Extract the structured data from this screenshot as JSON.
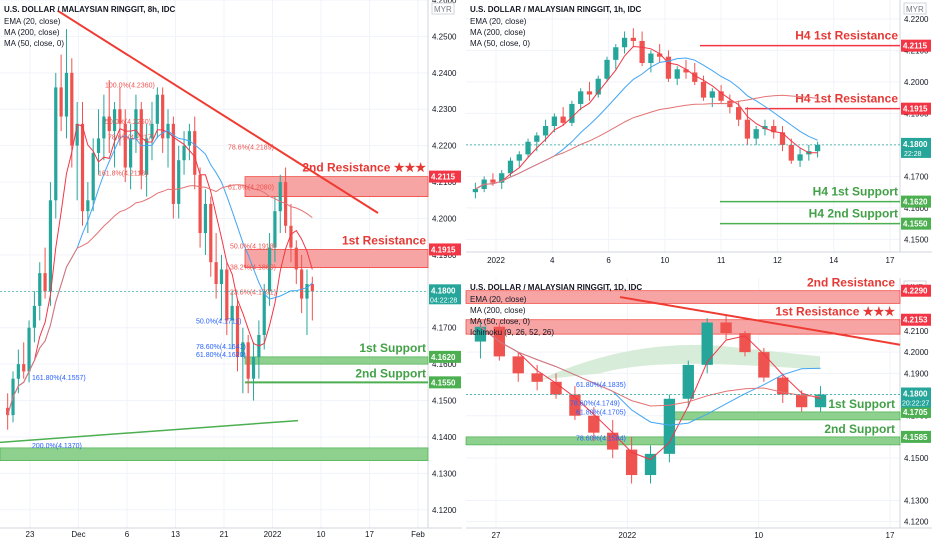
{
  "colors": {
    "bull": "#26a69a",
    "bear": "#ef5350",
    "ema20": "#f23645",
    "ma200": "#e57373",
    "ma50": "#42a5f5",
    "resistance_zone": "#f7a4a4",
    "support_zone": "#8ed08e",
    "resistance_text": "#e53935",
    "support_text": "#43a047",
    "res_label_bg": "#f23645",
    "sup_label_bg": "#4caf50",
    "price_label_bg": "#26a69a",
    "fib_text": "#ef5350",
    "fib_blue": "#2962ff",
    "grid": "#f0f3fa",
    "axis_text": "#131722",
    "trendline": "#ef3b32",
    "support_trend": "#4caf50",
    "ichimoku_cloud": "#c8e6c9"
  },
  "chart_data": [
    {
      "id": "main8h",
      "type": "candlestick",
      "title": "U.S. DOLLAR / MALAYSIAN RINGGIT, 8h, IDC",
      "indicators": [
        "EMA (20, close)",
        "MA (200, close)",
        "MA (50, close, 0)"
      ],
      "currency": "MYR",
      "ylim": [
        4.115,
        4.26
      ],
      "y_ticks": [
        "4.2600",
        "4.2500",
        "4.2400",
        "4.2300",
        "4.2200",
        "4.2100",
        "4.2000",
        "4.1900",
        "4.1800",
        "4.1700",
        "4.1600",
        "4.1500",
        "4.1400",
        "4.1300",
        "4.1200"
      ],
      "x_ticks": [
        "23",
        "Dec",
        "6",
        "13",
        "21",
        "2022",
        "10",
        "17",
        "Feb"
      ],
      "candles": [
        [
          4.148,
          4.152,
          4.142,
          4.146
        ],
        [
          4.146,
          4.158,
          4.144,
          4.156
        ],
        [
          4.156,
          4.164,
          4.152,
          4.16
        ],
        [
          4.16,
          4.166,
          4.156,
          4.158
        ],
        [
          4.158,
          4.172,
          4.155,
          4.17
        ],
        [
          4.17,
          4.18,
          4.166,
          4.176
        ],
        [
          4.176,
          4.188,
          4.172,
          4.185
        ],
        [
          4.185,
          4.192,
          4.178,
          4.18
        ],
        [
          4.18,
          4.21,
          4.176,
          4.205
        ],
        [
          4.205,
          4.24,
          4.2,
          4.236
        ],
        [
          4.236,
          4.245,
          4.224,
          4.228
        ],
        [
          4.228,
          4.252,
          4.222,
          4.24
        ],
        [
          4.24,
          4.244,
          4.214,
          4.22
        ],
        [
          4.22,
          4.232,
          4.205,
          4.226
        ],
        [
          4.226,
          4.232,
          4.198,
          4.202
        ],
        [
          4.202,
          4.21,
          4.196,
          4.205
        ],
        [
          4.205,
          4.222,
          4.202,
          4.218
        ],
        [
          4.218,
          4.23,
          4.212,
          4.222
        ],
        [
          4.222,
          4.234,
          4.216,
          4.228
        ],
        [
          4.228,
          4.238,
          4.218,
          4.224
        ],
        [
          4.224,
          4.232,
          4.214,
          4.23
        ],
        [
          4.23,
          4.236,
          4.22,
          4.226
        ],
        [
          4.226,
          4.23,
          4.21,
          4.214
        ],
        [
          4.214,
          4.226,
          4.208,
          4.222
        ],
        [
          4.222,
          4.234,
          4.218,
          4.23
        ],
        [
          4.23,
          4.232,
          4.208,
          4.212
        ],
        [
          4.212,
          4.226,
          4.206,
          4.222
        ],
        [
          4.222,
          4.232,
          4.216,
          4.226
        ],
        [
          4.226,
          4.236,
          4.222,
          4.234
        ],
        [
          4.234,
          4.236,
          4.218,
          4.222
        ],
        [
          4.222,
          4.23,
          4.214,
          4.226
        ],
        [
          4.226,
          4.228,
          4.2,
          4.204
        ],
        [
          4.204,
          4.22,
          4.2,
          4.216
        ],
        [
          4.216,
          4.224,
          4.212,
          4.22
        ],
        [
          4.22,
          4.226,
          4.216,
          4.224
        ],
        [
          4.224,
          4.228,
          4.208,
          4.212
        ],
        [
          4.212,
          4.214,
          4.192,
          4.196
        ],
        [
          4.196,
          4.208,
          4.19,
          4.204
        ],
        [
          4.204,
          4.206,
          4.184,
          4.188
        ],
        [
          4.188,
          4.196,
          4.178,
          4.182
        ],
        [
          4.182,
          4.19,
          4.172,
          4.186
        ],
        [
          4.186,
          4.188,
          4.168,
          4.172
        ],
        [
          4.172,
          4.18,
          4.164,
          4.176
        ],
        [
          4.176,
          4.178,
          4.158,
          4.162
        ],
        [
          4.162,
          4.17,
          4.152,
          4.166
        ],
        [
          4.166,
          4.168,
          4.152,
          4.156
        ],
        [
          4.156,
          4.166,
          4.15,
          4.162
        ],
        [
          4.162,
          4.172,
          4.156,
          4.168
        ],
        [
          4.168,
          4.182,
          4.164,
          4.18
        ],
        [
          4.18,
          4.196,
          4.176,
          4.192
        ],
        [
          4.192,
          4.206,
          4.188,
          4.202
        ],
        [
          4.202,
          4.212,
          4.196,
          4.21
        ],
        [
          4.21,
          4.214,
          4.196,
          4.198
        ],
        [
          4.198,
          4.204,
          4.188,
          4.192
        ],
        [
          4.192,
          4.194,
          4.182,
          4.186
        ],
        [
          4.186,
          4.19,
          4.174,
          4.178
        ],
        [
          4.178,
          4.186,
          4.168,
          4.182
        ],
        [
          4.182,
          4.184,
          4.172,
          4.18
        ]
      ],
      "fib_labels_red": [
        [
          "100.0%(4.2360)",
          4.236
        ],
        [
          "50.0%(4.2260)",
          4.226
        ],
        [
          "78.6%(4.2217)",
          4.2217
        ],
        [
          "161.8%(4.2118)",
          4.2118
        ],
        [
          "78.6%(4.2189)",
          4.2189
        ],
        [
          "61.8%(4.2080)",
          4.208
        ],
        [
          "50.0%(4.1918)",
          4.1918
        ],
        [
          "38.2%(4.1860)",
          4.186
        ],
        [
          "23.6%(4.1791)",
          4.1791
        ]
      ],
      "fib_labels_blue": [
        [
          "50.0%(4.1711)",
          4.1711
        ],
        [
          "78.60%(4.1641)",
          4.1641
        ],
        [
          "61.80%(4.1620)",
          4.162
        ],
        [
          "161.80%(4.1557)",
          4.1557
        ],
        [
          "200.0%(4.1370)",
          4.137
        ]
      ],
      "zones": [
        {
          "label": "2nd Resistance ★★★",
          "price_label": "4.2115",
          "top": 4.2115,
          "bottom": 4.206,
          "kind": "res"
        },
        {
          "label": "1st Resistance",
          "price_label": "4.1915",
          "top": 4.1915,
          "bottom": 4.1865,
          "kind": "res"
        },
        {
          "label": "1st Support",
          "price_label": "4.1620",
          "top": 4.162,
          "bottom": 4.16,
          "kind": "sup"
        },
        {
          "label": "2nd Support",
          "price_label": "4.1550",
          "top": 4.155,
          "bottom": 4.155,
          "kind": "sup"
        },
        {
          "label": "",
          "price_label": "",
          "top": 4.137,
          "bottom": 4.1335,
          "kind": "sup"
        }
      ],
      "last_price": "4.1800",
      "countdown": "04:22:28"
    },
    {
      "id": "h1",
      "type": "candlestick",
      "title": "U.S. DOLLAR / MALAYSIAN RINGGIT, 1h, IDC",
      "indicators": [
        "EMA (20, close)",
        "MA (200, close)",
        "MA (50, close, 0)"
      ],
      "currency": "MYR",
      "ylim": [
        4.146,
        4.226
      ],
      "y_ticks": [
        "4.2200",
        "4.2100",
        "4.2000",
        "4.1900",
        "4.1800",
        "4.1700",
        "4.1600",
        "4.1500"
      ],
      "x_ticks": [
        "2022",
        "4",
        "6",
        "10",
        "11",
        "12",
        "14",
        "17"
      ],
      "lines": [
        {
          "label": "H4 1st Resistance",
          "price_label": "4.2115",
          "price": 4.2115,
          "kind": "res"
        },
        {
          "label": "H4 1st Resistance",
          "price_label": "4.1915",
          "price": 4.1915,
          "kind": "res"
        },
        {
          "label": "H4 1st Support",
          "price_label": "4.1620",
          "price": 4.162,
          "kind": "sup"
        },
        {
          "label": "H4 2nd Support",
          "price_label": "4.1550",
          "price": 4.155,
          "kind": "sup"
        }
      ],
      "last_price": "4.1800",
      "countdown": "22:28",
      "candles": [
        [
          4.165,
          4.168,
          4.163,
          4.166
        ],
        [
          4.166,
          4.17,
          4.165,
          4.169
        ],
        [
          4.169,
          4.171,
          4.167,
          4.168
        ],
        [
          4.168,
          4.172,
          4.166,
          4.171
        ],
        [
          4.171,
          4.176,
          4.17,
          4.175
        ],
        [
          4.175,
          4.178,
          4.173,
          4.177
        ],
        [
          4.177,
          4.182,
          4.176,
          4.181
        ],
        [
          4.181,
          4.184,
          4.178,
          4.183
        ],
        [
          4.183,
          4.188,
          4.181,
          4.186
        ],
        [
          4.186,
          4.19,
          4.184,
          4.189
        ],
        [
          4.189,
          4.192,
          4.186,
          4.187
        ],
        [
          4.187,
          4.194,
          4.186,
          4.193
        ],
        [
          4.193,
          4.198,
          4.191,
          4.197
        ],
        [
          4.197,
          4.2,
          4.194,
          4.196
        ],
        [
          4.196,
          4.202,
          4.195,
          4.201
        ],
        [
          4.201,
          4.208,
          4.2,
          4.207
        ],
        [
          4.207,
          4.212,
          4.204,
          4.211
        ],
        [
          4.211,
          4.216,
          4.209,
          4.214
        ],
        [
          4.214,
          4.217,
          4.211,
          4.213
        ],
        [
          4.213,
          4.216,
          4.205,
          4.206
        ],
        [
          4.206,
          4.21,
          4.203,
          4.209
        ],
        [
          4.209,
          4.212,
          4.206,
          4.208
        ],
        [
          4.208,
          4.21,
          4.2,
          4.201
        ],
        [
          4.201,
          4.205,
          4.199,
          4.204
        ],
        [
          4.204,
          4.207,
          4.201,
          4.203
        ],
        [
          4.203,
          4.206,
          4.199,
          4.2
        ],
        [
          4.2,
          4.202,
          4.194,
          4.195
        ],
        [
          4.195,
          4.198,
          4.192,
          4.197
        ],
        [
          4.197,
          4.199,
          4.193,
          4.194
        ],
        [
          4.194,
          4.196,
          4.19,
          4.192
        ],
        [
          4.192,
          4.194,
          4.186,
          4.188
        ],
        [
          4.188,
          4.192,
          4.18,
          4.182
        ],
        [
          4.182,
          4.186,
          4.18,
          4.185
        ],
        [
          4.185,
          4.188,
          4.183,
          4.186
        ],
        [
          4.186,
          4.188,
          4.182,
          4.184
        ],
        [
          4.184,
          4.186,
          4.178,
          4.18
        ],
        [
          4.18,
          4.182,
          4.174,
          4.175
        ],
        [
          4.175,
          4.179,
          4.173,
          4.177
        ],
        [
          4.177,
          4.18,
          4.175,
          4.178
        ],
        [
          4.178,
          4.181,
          4.176,
          4.18
        ]
      ]
    },
    {
      "id": "d1",
      "type": "candlestick",
      "title": "U.S. DOLLAR / MALAYSIAN RINGGIT, 1D, IDC",
      "indicators": [
        "EMA (20, close)",
        "MA (200, close)",
        "MA (50, close, 0)",
        "Ichimoku (9, 26, 52, 26)"
      ],
      "currency": "MYR",
      "ylim": [
        4.117,
        4.235
      ],
      "y_ticks": [
        "4.2100",
        "4.2000",
        "4.1900",
        "4.1800",
        "4.1700",
        "4.1600",
        "4.1500",
        "4.1300",
        "4.1200"
      ],
      "x_ticks": [
        "27",
        "2022",
        "10",
        "17"
      ],
      "zones": [
        {
          "label": "2nd Resistance",
          "price_label": "4.2290",
          "top": 4.229,
          "bottom": 4.223,
          "kind": "res"
        },
        {
          "label": "1st Resistance ★★★",
          "price_label": "4.2153",
          "top": 4.2153,
          "bottom": 4.2085,
          "kind": "res"
        },
        {
          "label": "1st Support",
          "price_label": "4.1705",
          "top": 4.1718,
          "bottom": 4.1705,
          "kind": "sup"
        },
        {
          "label": "2nd Support",
          "price_label": "4.1585",
          "top": 4.16,
          "bottom": 4.1585,
          "kind": "sup"
        }
      ],
      "fib_labels": [
        [
          "61.80%(4.1835)",
          4.1835
        ],
        [
          "78.60%(4.1749)",
          4.1749
        ],
        [
          "61.80%(4.1705)",
          4.1705
        ],
        [
          "78.60%(4.1584)",
          4.1584
        ]
      ],
      "last_price": "4.1800",
      "countdown": "20:22:27",
      "candles": [
        [
          4.205,
          4.214,
          4.197,
          4.212
        ],
        [
          4.212,
          4.214,
          4.196,
          4.198
        ],
        [
          4.198,
          4.2,
          4.186,
          4.19
        ],
        [
          4.19,
          4.194,
          4.182,
          4.186
        ],
        [
          4.186,
          4.19,
          4.178,
          4.18
        ],
        [
          4.18,
          4.184,
          4.168,
          4.17
        ],
        [
          4.17,
          4.174,
          4.158,
          4.162
        ],
        [
          4.162,
          4.168,
          4.15,
          4.154
        ],
        [
          4.154,
          4.16,
          4.138,
          4.142
        ],
        [
          4.142,
          4.156,
          4.138,
          4.152
        ],
        [
          4.152,
          4.18,
          4.148,
          4.178
        ],
        [
          4.178,
          4.196,
          4.174,
          4.194
        ],
        [
          4.194,
          4.216,
          4.19,
          4.214
        ],
        [
          4.214,
          4.218,
          4.206,
          4.209
        ],
        [
          4.209,
          4.21,
          4.198,
          4.2
        ],
        [
          4.2,
          4.202,
          4.186,
          4.188
        ],
        [
          4.188,
          4.19,
          4.176,
          4.18
        ],
        [
          4.18,
          4.182,
          4.172,
          4.174
        ],
        [
          4.174,
          4.184,
          4.172,
          4.18
        ]
      ]
    }
  ]
}
